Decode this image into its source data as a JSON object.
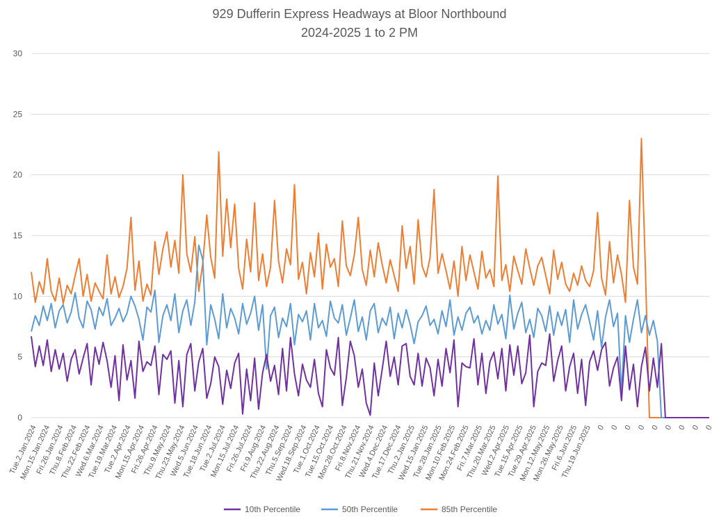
{
  "chart_data": {
    "type": "line",
    "title": "929 Dufferin Express Headways at Bloor Northbound",
    "subtitle": "2024-2025 1 to 2 PM",
    "xlabel": "",
    "ylabel": "",
    "ylim": [
      0,
      30
    ],
    "yticks": [
      0,
      5,
      10,
      15,
      20,
      25,
      30
    ],
    "grid": true,
    "legend_position": "bottom",
    "colors": {
      "10th Percentile": "#7030a0",
      "50th Percentile": "#5b9bd5",
      "85th Percentile": "#ed7d31"
    },
    "x_tick_labels": [
      "Tue.2.Jan.2024",
      "Mon.15.Jan.2024",
      "Fri.26.Jan.2024",
      "Thu.8.Feb.2024",
      "Thu.22.Feb.2024",
      "Wed.6.Mar.2024",
      "Tue.19.Mar.2024",
      "Tue.2.Apr.2024",
      "Mon.15.Apr.2024",
      "Fri.26.Apr.2024",
      "Thu.9.May.2024",
      "Thu.23.May.2024",
      "Wed.5.Jun.2024",
      "Tue.18.Jun.2024",
      "Tue.2.Jul.2024",
      "Mon.15.Jul.2024",
      "Fri.26.Jul.2024",
      "Fri.9.Aug.2024",
      "Thu.22.Aug.2024",
      "Thu.5.Sep.2024",
      "Wed.18.Sep.2024",
      "Tue.1.Oct.2024",
      "Tue.15.Oct.2024",
      "Mon.28.Oct.2024",
      "Fri.8.Nov.2024",
      "Thu.21.Nov.2024",
      "Wed.4.Dec.2024",
      "Tue.17.Dec.2024",
      "Thu.2.Jan.2025",
      "Wed.15.Jan.2025",
      "Tue.28.Jan.2025",
      "Mon.10.Feb.2025",
      "Mon.24.Feb.2025",
      "Fri.7.Mar.2025",
      "Thu.20.Mar.2025",
      "Wed.2.Apr.2025",
      "Tue.15.Apr.2025",
      "Tue.29.Apr.2025",
      "Mon.12.May.2025",
      "Mon.26.May.2025",
      "Fri.6.Jun.2025",
      "Thu.19.Jun.2025",
      "0",
      "0",
      "0",
      "0",
      "0",
      "0",
      "0",
      "0",
      "0"
    ],
    "series": [
      {
        "name": "10th Percentile",
        "values": [
          6.7,
          4.2,
          5.9,
          4.3,
          6.4,
          3.8,
          5.6,
          4.0,
          5.3,
          3.0,
          4.8,
          5.6,
          3.6,
          4.9,
          6.1,
          2.7,
          5.8,
          4.4,
          6.2,
          4.7,
          2.5,
          5.1,
          1.4,
          6.0,
          3.1,
          4.7,
          1.6,
          6.3,
          3.8,
          4.6,
          4.3,
          5.9,
          1.9,
          5.2,
          4.8,
          5.5,
          1.2,
          4.7,
          0.9,
          5.2,
          6.1,
          2.2,
          4.6,
          5.7,
          1.6,
          2.8,
          5.0,
          4.2,
          1.1,
          3.9,
          2.4,
          4.5,
          5.3,
          0.3,
          4.0,
          1.4,
          4.9,
          0.7,
          3.7,
          5.2,
          3.0,
          4.3,
          1.9,
          5.7,
          2.2,
          6.6,
          3.6,
          1.8,
          4.4,
          3.1,
          2.5,
          4.8,
          2.0,
          0.9,
          5.6,
          4.1,
          3.5,
          6.6,
          1.0,
          3.3,
          6.3,
          5.1,
          2.5,
          4.0,
          1.2,
          0.2,
          4.5,
          1.8,
          4.0,
          6.3,
          3.4,
          5.0,
          2.7,
          5.9,
          6.1,
          3.4,
          2.7,
          5.3,
          2.6,
          4.9,
          4.1,
          1.8,
          4.8,
          2.6,
          5.7,
          3.7,
          6.4,
          0.9,
          4.5,
          4.2,
          4.1,
          6.5,
          2.7,
          5.3,
          2.0,
          4.6,
          5.4,
          3.2,
          5.7,
          2.2,
          6.0,
          3.5,
          5.9,
          2.8,
          3.7,
          6.8,
          0.9,
          3.8,
          4.5,
          4.3,
          6.9,
          3.0,
          4.7,
          5.9,
          2.2,
          4.2,
          5.3,
          2.0,
          4.8,
          1.0,
          4.6,
          5.5,
          3.9,
          5.6,
          6.2,
          2.6,
          4.1,
          5.0,
          1.4,
          5.9,
          2.3,
          4.4,
          0.9,
          4.2,
          5.8,
          2.2,
          4.9,
          2.5,
          6.1,
          0.0,
          0.0,
          0.0,
          0.0,
          0.0,
          0.0,
          0.0,
          0.0,
          0.0,
          0.0,
          0.0,
          0.0
        ]
      },
      {
        "name": "50th Percentile",
        "values": [
          7.1,
          8.4,
          7.6,
          9.2,
          8.0,
          9.4,
          7.4,
          8.8,
          9.3,
          7.8,
          8.7,
          10.3,
          8.2,
          7.4,
          9.6,
          8.9,
          7.3,
          9.1,
          8.4,
          9.8,
          7.6,
          8.2,
          9.0,
          7.9,
          8.6,
          10.0,
          9.2,
          8.1,
          6.4,
          9.1,
          8.7,
          10.5,
          6.2,
          8.4,
          9.3,
          8.0,
          10.2,
          7.0,
          8.8,
          9.7,
          7.6,
          9.5,
          14.2,
          13.0,
          6.0,
          9.3,
          8.1,
          6.5,
          10.2,
          7.4,
          9.0,
          8.2,
          6.9,
          9.4,
          7.7,
          8.6,
          10.0,
          7.2,
          9.3,
          4.0,
          8.4,
          9.1,
          6.6,
          8.2,
          7.5,
          9.4,
          6.0,
          8.5,
          7.9,
          8.8,
          6.4,
          9.4,
          7.4,
          8.0,
          6.7,
          9.6,
          8.2,
          7.8,
          9.3,
          6.8,
          8.2,
          9.7,
          7.1,
          8.3,
          6.4,
          8.8,
          9.4,
          7.0,
          8.2,
          7.6,
          9.1,
          6.5,
          8.6,
          7.4,
          8.9,
          7.7,
          6.1,
          7.9,
          8.4,
          9.2,
          7.6,
          8.1,
          6.9,
          8.8,
          7.5,
          9.7,
          6.8,
          8.3,
          7.2,
          8.6,
          9.1,
          7.8,
          8.4,
          6.9,
          8.0,
          7.2,
          9.3,
          7.7,
          8.5,
          6.5,
          10.1,
          7.3,
          8.6,
          9.5,
          7.0,
          8.1,
          6.6,
          9.0,
          8.4,
          7.1,
          9.2,
          6.8,
          8.7,
          7.6,
          8.9,
          6.2,
          9.7,
          7.3,
          8.5,
          9.3,
          7.9,
          6.4,
          8.8,
          5.8,
          8.3,
          9.7,
          7.5,
          8.6,
          2.1,
          8.4,
          6.2,
          8.1,
          9.7,
          7.0,
          8.4,
          6.8,
          8.0,
          6.3,
          0.0,
          0.0,
          0.0,
          0.0,
          0.0,
          0.0,
          0.0,
          0.0,
          0.0,
          0.0,
          0.0,
          0.0
        ]
      },
      {
        "name": "85th Percentile",
        "values": [
          12.0,
          9.5,
          11.2,
          10.2,
          13.1,
          10.4,
          9.6,
          11.5,
          9.4,
          10.9,
          10.2,
          11.7,
          13.1,
          10.0,
          11.8,
          9.6,
          11.1,
          10.4,
          9.8,
          13.4,
          10.2,
          11.6,
          9.9,
          10.8,
          12.3,
          16.5,
          10.5,
          12.9,
          9.6,
          11.0,
          10.1,
          14.5,
          11.8,
          13.9,
          15.3,
          12.4,
          14.6,
          11.9,
          20.0,
          13.5,
          12.0,
          14.9,
          10.4,
          12.7,
          16.7,
          13.2,
          11.5,
          21.9,
          13.3,
          18.0,
          14.0,
          17.6,
          12.3,
          10.6,
          14.7,
          12.0,
          17.7,
          11.3,
          13.5,
          10.8,
          12.4,
          17.9,
          12.9,
          11.1,
          13.9,
          12.6,
          19.2,
          11.4,
          12.8,
          10.2,
          13.6,
          11.6,
          15.2,
          10.6,
          14.3,
          12.4,
          13.1,
          10.8,
          16.2,
          12.5,
          11.7,
          13.4,
          16.5,
          12.2,
          10.9,
          13.8,
          11.6,
          14.4,
          12.6,
          11.1,
          13.0,
          11.7,
          10.4,
          15.8,
          12.3,
          14.1,
          11.0,
          16.3,
          12.5,
          11.6,
          13.2,
          18.8,
          11.9,
          13.5,
          12.1,
          10.6,
          12.9,
          10.0,
          14.1,
          11.3,
          13.4,
          12.0,
          10.6,
          13.7,
          11.5,
          12.2,
          10.8,
          19.9,
          11.3,
          12.6,
          10.4,
          13.3,
          12.1,
          11.0,
          13.9,
          12.3,
          10.9,
          12.5,
          13.2,
          11.7,
          10.2,
          13.8,
          11.4,
          12.8,
          11.0,
          10.4,
          11.9,
          10.9,
          12.5,
          11.3,
          10.8,
          12.1,
          16.9,
          11.5,
          10.1,
          14.5,
          11.1,
          13.4,
          11.8,
          9.5,
          17.9,
          12.4,
          11.0,
          23.0,
          12.1,
          0.0,
          0.0,
          0.0,
          0.0,
          0.0,
          0.0,
          0.0,
          0.0,
          0.0,
          0.0,
          0.0,
          0.0
        ]
      }
    ]
  }
}
